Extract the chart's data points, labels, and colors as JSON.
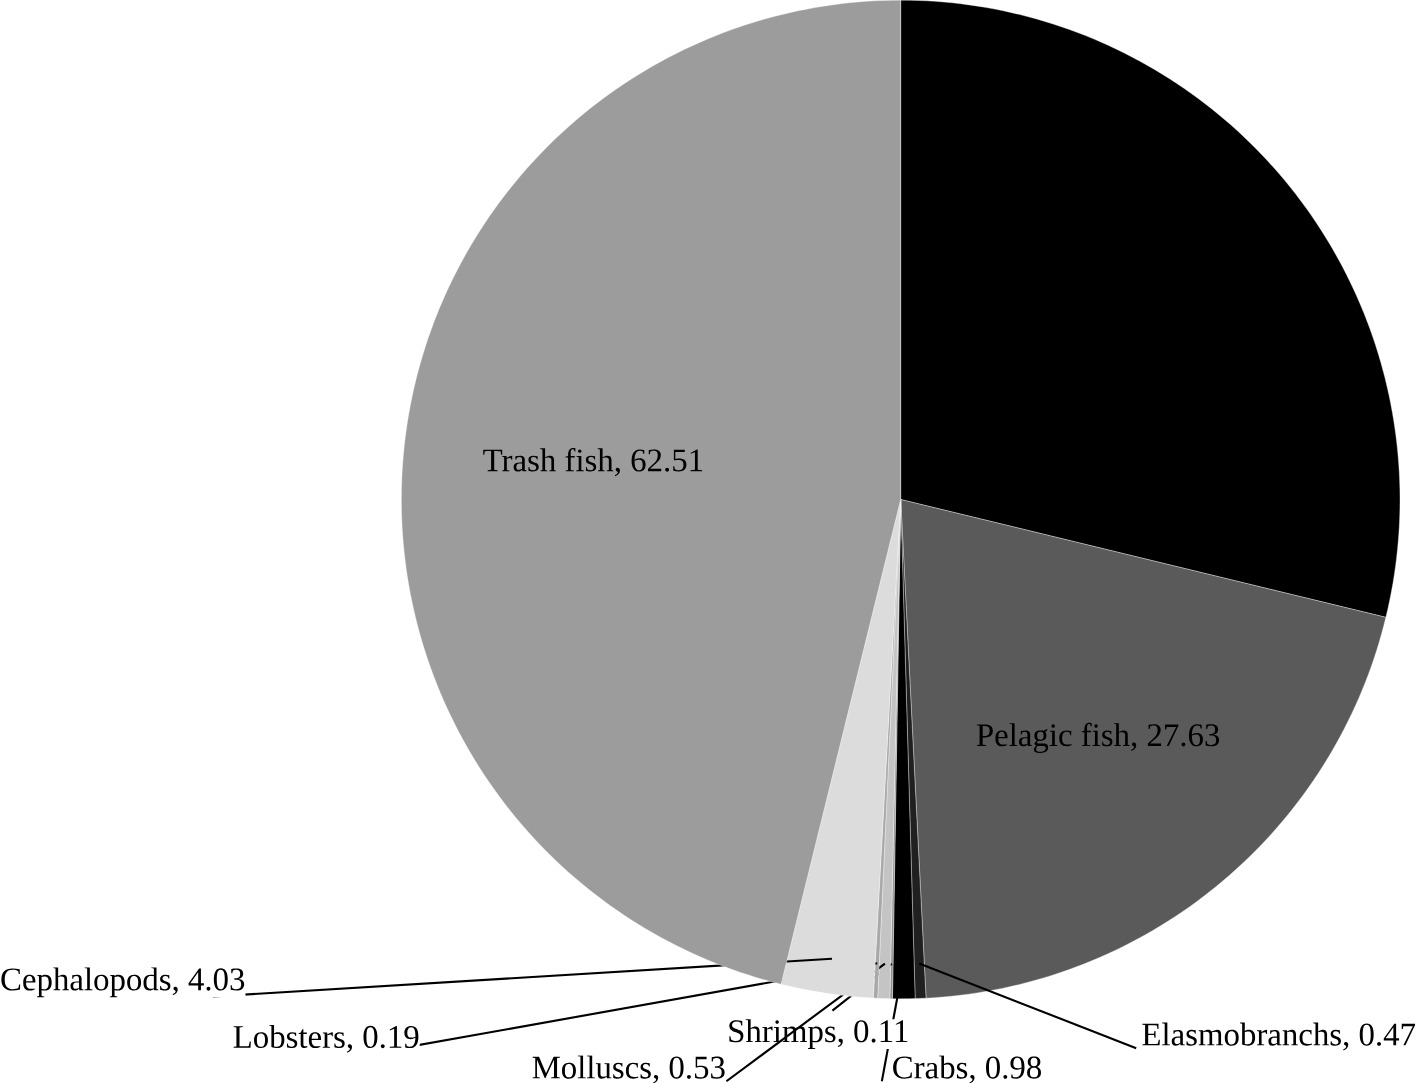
{
  "chart_data": {
    "type": "pie",
    "categories": [
      null,
      "Pelagic fish, 27.63",
      "Elasmobranchs, 0.47",
      "Crabs, 0.98",
      "Shrimps, 0.11",
      "Molluscs, 0.53",
      "Lobsters, 0.19",
      "Cephalopods, 4.03",
      "Trash fish, 62.51"
    ],
    "values": [
      39,
      27.63,
      0.47,
      0.98,
      0.11,
      0.53,
      0.19,
      4.03,
      62.51
    ],
    "colors": [
      "#000000",
      "#5a5a5a",
      "#202020",
      "#000000",
      "#909090",
      "#c4c4c4",
      "#a8a8a8",
      "#dcdcdc",
      "#9c9c9c"
    ]
  }
}
